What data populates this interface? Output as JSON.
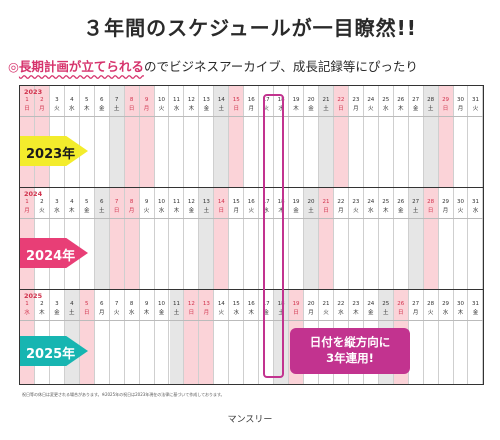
{
  "headline": "３年間のスケジュールが一目瞭然!!",
  "subline": {
    "prefix": "◎",
    "highlight": "長期計画が立てられる",
    "suffix": "のでビジネスアーカイブ、成長記録等にぴったり"
  },
  "years": [
    {
      "label": "2023年",
      "year_small": "2023",
      "month_small": "1 January",
      "arrow_color": "#f3ec2c",
      "weekdays": [
        "日",
        "月",
        "火",
        "水",
        "木",
        "金",
        "土",
        "日",
        "月",
        "火",
        "水",
        "木",
        "金",
        "土",
        "日",
        "月",
        "火",
        "水",
        "木",
        "金",
        "土",
        "日",
        "月",
        "火",
        "水",
        "木",
        "金",
        "土",
        "日",
        "月",
        "火"
      ],
      "holidays": [
        1,
        2,
        9
      ]
    },
    {
      "label": "2024年",
      "year_small": "2024",
      "month_small": "",
      "arrow_color": "#e83e76",
      "weekdays": [
        "月",
        "火",
        "水",
        "木",
        "金",
        "土",
        "日",
        "月",
        "火",
        "水",
        "木",
        "金",
        "土",
        "日",
        "月",
        "火",
        "水",
        "木",
        "金",
        "土",
        "日",
        "月",
        "火",
        "水",
        "木",
        "金",
        "土",
        "日",
        "月",
        "火",
        "水"
      ],
      "holidays": [
        1,
        8
      ]
    },
    {
      "label": "2025年",
      "year_small": "2025",
      "month_small": "",
      "arrow_color": "#17b5b1",
      "weekdays": [
        "水",
        "木",
        "金",
        "土",
        "日",
        "月",
        "火",
        "水",
        "木",
        "金",
        "土",
        "日",
        "月",
        "火",
        "水",
        "木",
        "金",
        "土",
        "日",
        "月",
        "火",
        "水",
        "木",
        "金",
        "土",
        "日",
        "月",
        "火",
        "水",
        "木",
        "金"
      ],
      "holidays": [
        1,
        13
      ]
    }
  ],
  "callout": {
    "line1": "日付を縦方向に",
    "line2": "3年連用!"
  },
  "footnote": "祝日等の休日は変更される場合があります。※2025年の祝日は2023年現在の法律に基づいて作成しております。",
  "caption": "マンスリー",
  "colors": {
    "pink": "#fbd3d8",
    "gray": "#e6e6e6",
    "accent": "#c2338f",
    "holiday_text": "#d0314c"
  }
}
